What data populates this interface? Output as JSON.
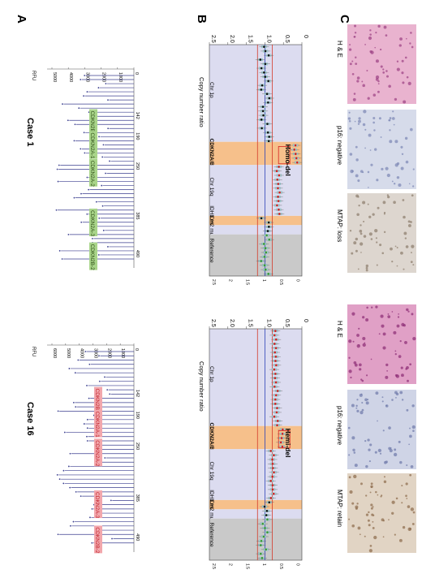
{
  "panels": {
    "A": "A",
    "B": "B",
    "C": "C"
  },
  "colors": {
    "trace": "#3b3f8f",
    "pink": "#f2a7ac",
    "green": "#a9d58a",
    "region_blue": "#dcdcf0",
    "region_orange": "#f6c08b",
    "region_gray": "#c9c9c9",
    "mean_line": "#2d42b8",
    "thresh_line": "#d43a2a",
    "box": "#b7e0e6",
    "red_dot": "#d42020",
    "green_dot": "#3a9a30",
    "black_dot": "#111111"
  },
  "case1": {
    "title": "Case 1",
    "ylabel": "RFU",
    "yticks": [
      "5000",
      "4000",
      "3000",
      "2000",
      "1000",
      "0"
    ],
    "xticks": [
      "142",
      "190",
      "250",
      "385",
      "490"
    ],
    "probes": [
      "CDKN2B-1",
      "CDKN2A-1",
      "CDKN2A-2",
      "CDKN2A-3",
      "CDKN2B-2"
    ]
  },
  "case16": {
    "title": "Case 16",
    "ylabel": "RFU",
    "yticks": [
      "6000",
      "5000",
      "4000",
      "3000",
      "2000",
      "1000",
      "0"
    ],
    "xticks": [
      "142",
      "190",
      "250",
      "385",
      "490"
    ],
    "probes": [
      "CDKN2B-1",
      "CDKN2A-1",
      "CDKN2A-2",
      "CDKN2A-3",
      "CDKN2B-2"
    ]
  },
  "ratio_plot": {
    "ylabel": "Copy number ratio",
    "yticks": [
      "2.5",
      "2.0",
      "1.5",
      "1.0",
      "0.5",
      "0"
    ],
    "yticks_right": [
      "2.5",
      "2",
      "1.5",
      "1",
      "0.5",
      "0"
    ],
    "regions": [
      "Chr 1p",
      "CDKN2A/B",
      "Chr 19q",
      "IDH1 mut",
      "IDH2 mut",
      "Reference"
    ],
    "case1_call": "Homo-del",
    "case16_call": "Hemi-del"
  },
  "histology": {
    "case1": [
      "H & E",
      "p16: negative",
      "MTAP: loss"
    ],
    "case16": [
      "H & E",
      "p16: negative",
      "MTAP: retain"
    ]
  }
}
